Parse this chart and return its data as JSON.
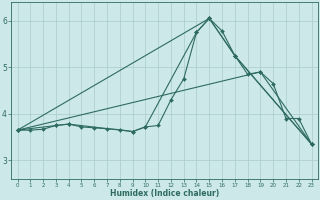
{
  "xlabel": "Humidex (Indice chaleur)",
  "bg_color": "#cce8e8",
  "grid_color": "#aacccc",
  "line_color": "#2e6b60",
  "xlim": [
    -0.5,
    23.5
  ],
  "ylim": [
    2.6,
    6.4
  ],
  "xticks": [
    0,
    1,
    2,
    3,
    4,
    5,
    6,
    7,
    8,
    9,
    10,
    11,
    12,
    13,
    14,
    15,
    16,
    17,
    18,
    19,
    20,
    21,
    22,
    23
  ],
  "yticks": [
    3,
    4,
    5,
    6
  ],
  "line1_x": [
    0,
    1,
    2,
    3,
    4,
    5,
    6,
    7,
    8,
    9,
    10,
    11,
    12,
    13,
    14,
    15,
    16,
    17,
    18,
    19,
    20,
    21,
    22,
    23
  ],
  "line1_y": [
    3.65,
    3.65,
    3.67,
    3.75,
    3.78,
    3.72,
    3.7,
    3.68,
    3.66,
    3.62,
    3.72,
    3.75,
    4.3,
    4.75,
    5.75,
    6.05,
    5.78,
    5.25,
    4.85,
    4.9,
    4.65,
    3.9,
    3.9,
    3.35
  ],
  "line2_x": [
    0,
    3,
    4,
    9,
    10,
    14,
    15,
    17,
    23
  ],
  "line2_y": [
    3.65,
    3.75,
    3.78,
    3.62,
    3.72,
    5.75,
    6.05,
    5.25,
    3.35
  ],
  "line3_x": [
    0,
    15,
    17,
    23
  ],
  "line3_y": [
    3.65,
    6.05,
    5.25,
    3.35
  ],
  "line4_x": [
    0,
    19,
    23
  ],
  "line4_y": [
    3.65,
    4.9,
    3.35
  ],
  "marker_size": 2,
  "line_width": 0.8
}
